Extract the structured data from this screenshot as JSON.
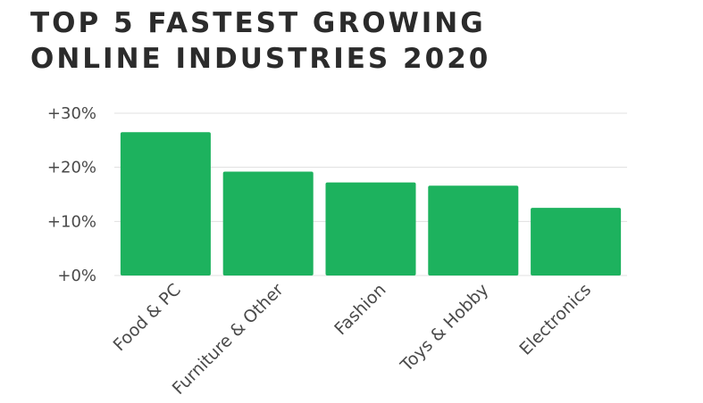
{
  "title_line1": "TOP 5 FASTEST GROWING",
  "title_line2": "ONLINE INDUSTRIES 2020",
  "colors": {
    "bar": "#1db25e",
    "grid": "#e0e0e0",
    "text": "#4a4a4a",
    "title": "#2b2b2b"
  },
  "chart_data": {
    "type": "bar",
    "title": "TOP 5 FASTEST GROWING ONLINE INDUSTRIES 2020",
    "categories": [
      "Food & PC",
      "Furniture & Other",
      "Fashion",
      "Toys & Hobby",
      "Electronics"
    ],
    "values": [
      26.5,
      19.2,
      17.2,
      16.6,
      12.5
    ],
    "unit": "%",
    "ylim": [
      0,
      30
    ],
    "yticks": [
      0,
      10,
      20,
      30
    ],
    "ytick_labels": [
      "+0%",
      "+10%",
      "+20%",
      "+30%"
    ],
    "grid": true,
    "legend": "none"
  }
}
